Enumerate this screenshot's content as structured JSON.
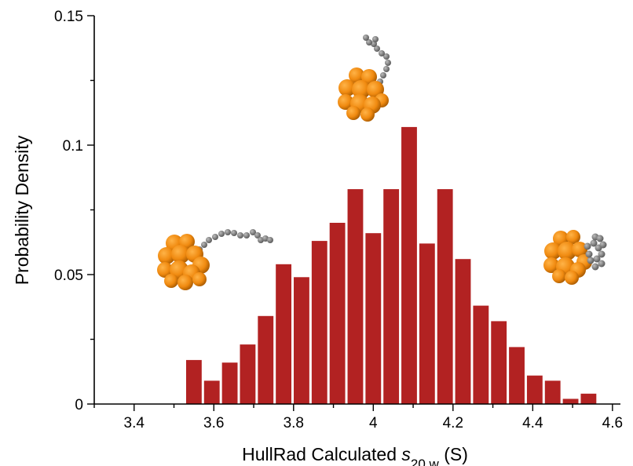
{
  "chart_data": {
    "type": "bar",
    "title": "",
    "xlabel_prefix": "HullRad Calculated ",
    "xlabel_symbol": "s",
    "xlabel_subscript": "20,w",
    "xlabel_suffix": " (S)",
    "ylabel": "Probability Density",
    "xlim": [
      3.3,
      4.62
    ],
    "ylim": [
      0,
      0.15
    ],
    "bin_width": 0.045,
    "x": [
      3.55,
      3.595,
      3.64,
      3.685,
      3.73,
      3.775,
      3.82,
      3.865,
      3.91,
      3.955,
      4.0,
      4.045,
      4.09,
      4.135,
      4.18,
      4.225,
      4.27,
      4.315,
      4.36,
      4.405,
      4.45,
      4.495,
      4.54
    ],
    "values": [
      0.017,
      0.009,
      0.016,
      0.023,
      0.034,
      0.054,
      0.049,
      0.063,
      0.07,
      0.083,
      0.066,
      0.083,
      0.107,
      0.062,
      0.083,
      0.056,
      0.038,
      0.032,
      0.022,
      0.011,
      0.009,
      0.002,
      0.004
    ],
    "x_ticks": [
      "3.4",
      "3.6",
      "3.8",
      "4",
      "4.2",
      "4.4",
      "4.6"
    ],
    "x_tick_values": [
      3.4,
      3.6,
      3.8,
      4.0,
      4.2,
      4.4,
      4.6
    ],
    "y_ticks": [
      "0",
      "0.05",
      "0.1",
      "0.15"
    ],
    "y_tick_values": [
      0,
      0.05,
      0.1,
      0.15
    ],
    "bar_color": "#b22222",
    "grid": false,
    "legend": "none",
    "insets": [
      "protein-extended-tail-image",
      "protein-vertical-tail-image",
      "protein-compact-tail-image"
    ]
  }
}
